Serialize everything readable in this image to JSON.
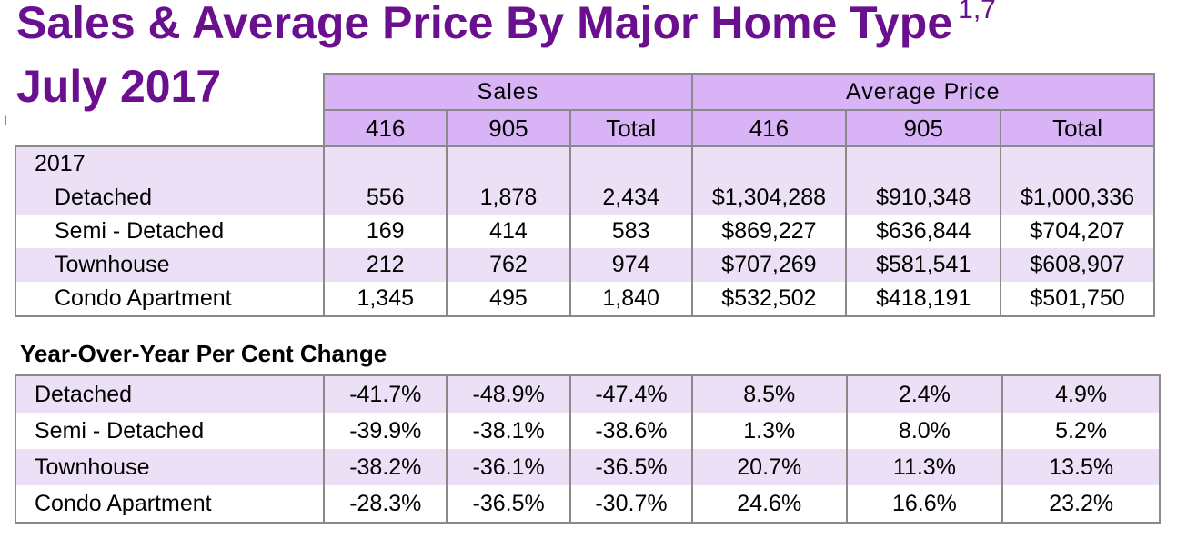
{
  "title": "Sales & Average Price By Major Home Type",
  "title_footnote": "1,7",
  "subtitle": "July 2017",
  "sales_table": {
    "group_headers": [
      "Sales",
      "Average Price"
    ],
    "sub_headers": [
      "416",
      "905",
      "Total",
      "416",
      "905",
      "Total"
    ],
    "year_label": "2017",
    "rows": [
      {
        "label": "Detached",
        "values": [
          "556",
          "1,878",
          "2,434",
          "$1,304,288",
          "$910,348",
          "$1,000,336"
        ]
      },
      {
        "label": "Semi - Detached",
        "values": [
          "169",
          "414",
          "583",
          "$869,227",
          "$636,844",
          "$704,207"
        ]
      },
      {
        "label": "Townhouse",
        "values": [
          "212",
          "762",
          "974",
          "$707,269",
          "$581,541",
          "$608,907"
        ]
      },
      {
        "label": "Condo Apartment",
        "values": [
          "1,345",
          "495",
          "1,840",
          "$532,502",
          "$418,191",
          "$501,750"
        ]
      }
    ]
  },
  "yoy_table": {
    "heading": "Year-Over-Year Per Cent Change",
    "rows": [
      {
        "label": "Detached",
        "values": [
          "-41.7%",
          "-48.9%",
          "-47.4%",
          "8.5%",
          "2.4%",
          "4.9%"
        ]
      },
      {
        "label": "Semi - Detached",
        "values": [
          "-39.9%",
          "-38.1%",
          "-38.6%",
          "1.3%",
          "8.0%",
          "5.2%"
        ]
      },
      {
        "label": "Townhouse",
        "values": [
          "-38.2%",
          "-36.1%",
          "-36.5%",
          "20.7%",
          "11.3%",
          "13.5%"
        ]
      },
      {
        "label": "Condo Apartment",
        "values": [
          "-28.3%",
          "-36.5%",
          "-30.7%",
          "24.6%",
          "16.6%",
          "23.2%"
        ]
      }
    ]
  }
}
